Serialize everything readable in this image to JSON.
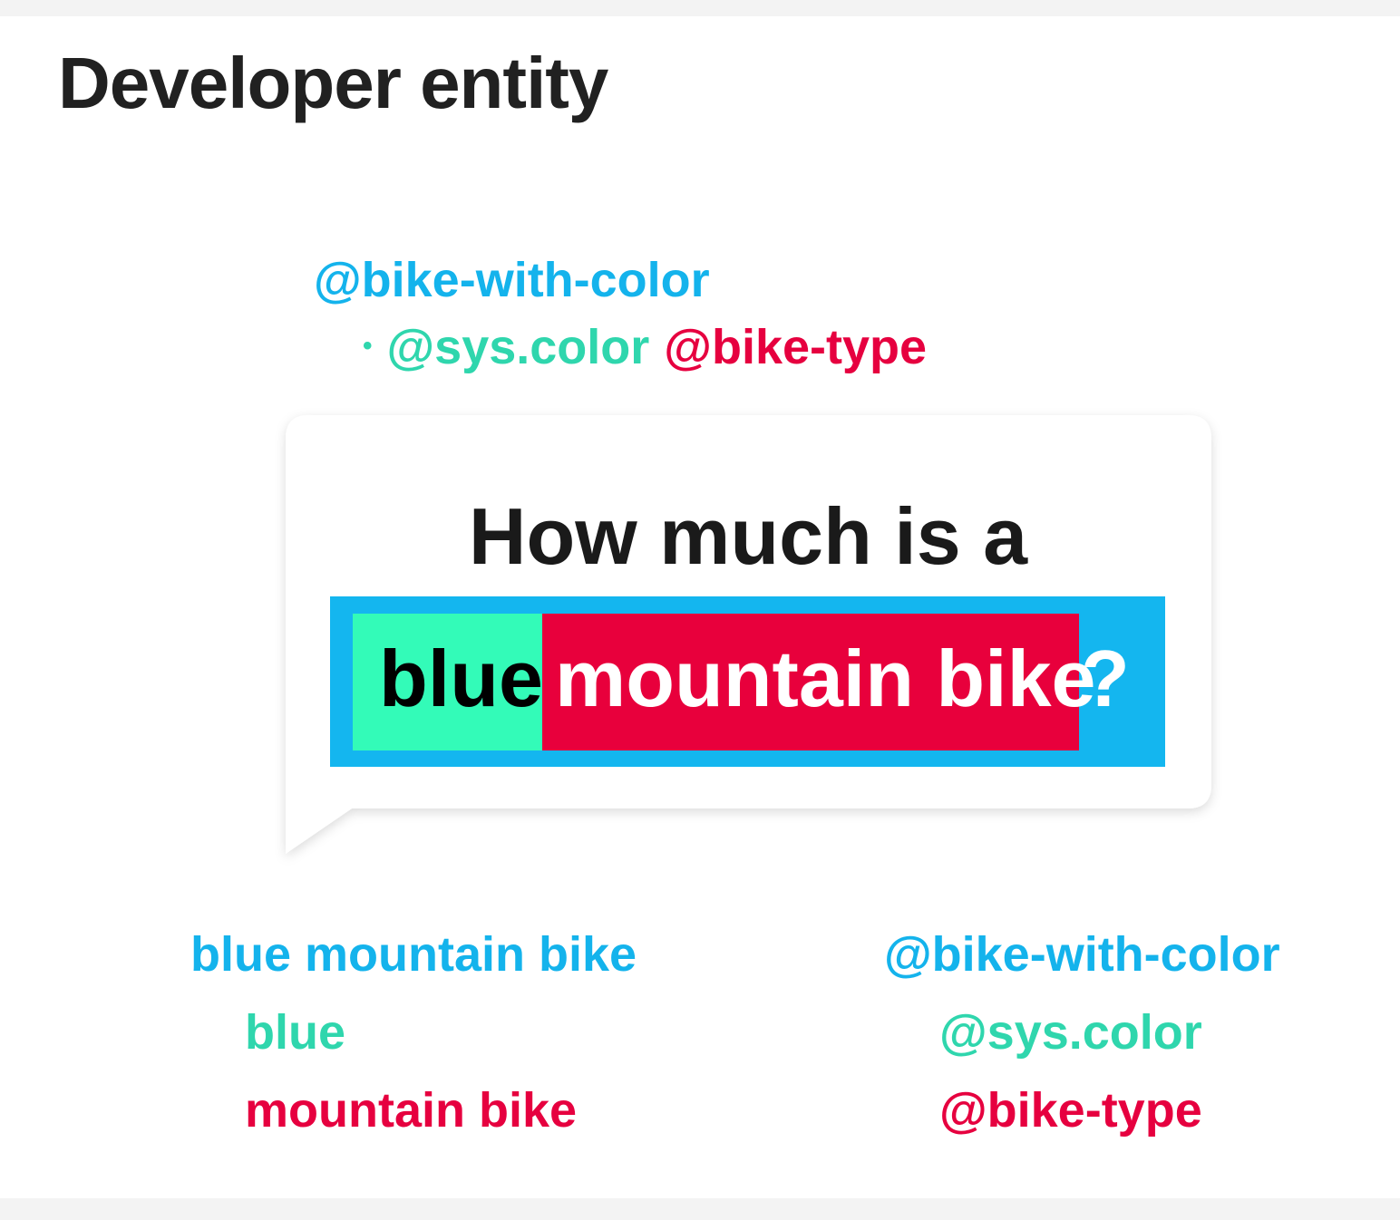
{
  "title": "Developer entity",
  "colors": {
    "composite": "#14b3ec",
    "color_entity": "#2fd6ad",
    "type_entity": "#e6003f",
    "highlight_green": "#33fbb8",
    "highlight_red": "#e8003c",
    "highlight_blue": "#14b6ef",
    "title": "#212121"
  },
  "definition": {
    "entity": "@bike-with-color",
    "bullet": "•",
    "parts": [
      "@sys.color",
      "@bike-type"
    ]
  },
  "bubble": {
    "question_line1": "How much is a",
    "highlight_color_word": "blue",
    "highlight_type_words": "mountain bike",
    "trailing": "?"
  },
  "values": {
    "full": "blue mountain bike",
    "color": "blue",
    "type": "mountain bike"
  },
  "entities": {
    "full": "@bike-with-color",
    "color": "@sys.color",
    "type": "@bike-type"
  }
}
